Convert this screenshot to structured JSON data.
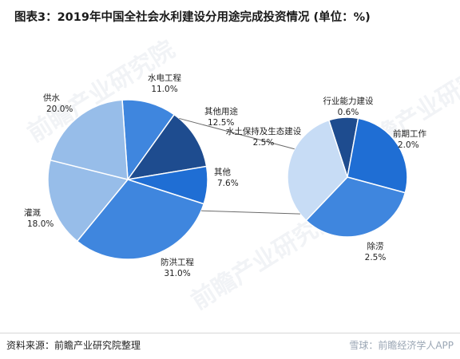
{
  "title": "图表3：2019年中国全社会水利建设分用途完成投资情况 (单位：%)",
  "source": "资料来源：前瞻产业研究院整理",
  "watermark": "雪球：前瞻经济学人APP",
  "background_watermark": "前瞻产业研究院",
  "colors": {
    "dark_blue": "#1e4c8f",
    "blue": "#1f6ed4",
    "mid_blue": "#3f86de",
    "light_blue": "#97bde9",
    "pale_blue": "#c7dcf5",
    "connector": "#6b6b6b"
  },
  "chart_data": {
    "type": "pie",
    "main_pie": {
      "slices": [
        {
          "label": "水电工程",
          "value": 11.0,
          "display": "11.0%",
          "color": "#3f86de"
        },
        {
          "label": "其他用途",
          "value": 12.5,
          "display": "12.5%",
          "color": "#1e4c8f"
        },
        {
          "label": "其他",
          "value": 7.6,
          "display": "7.6%",
          "color": "#1f6ed4"
        },
        {
          "label": "防洪工程",
          "value": 31.0,
          "display": "31.0%",
          "color": "#3f86de"
        },
        {
          "label": "灌溉",
          "value": 18.0,
          "display": "18.0%",
          "color": "#97bde9"
        },
        {
          "label": "供水",
          "value": 20.0,
          "display": "20.0%",
          "color": "#97bde9"
        }
      ]
    },
    "sub_pie": {
      "parent": "其他用途",
      "slices": [
        {
          "label": "行业能力建设",
          "value": 0.6,
          "display": "0.6%",
          "color": "#1e4c8f"
        },
        {
          "label": "前期工作",
          "value": 2.0,
          "display": "2.0%",
          "color": "#1f6ed4"
        },
        {
          "label": "除涝",
          "value": 2.5,
          "display": "2.5%",
          "color": "#3f86de"
        },
        {
          "label": "水土保持及生态建设",
          "value": 2.5,
          "display": "2.5%",
          "color": "#c7dcf5"
        }
      ]
    }
  }
}
